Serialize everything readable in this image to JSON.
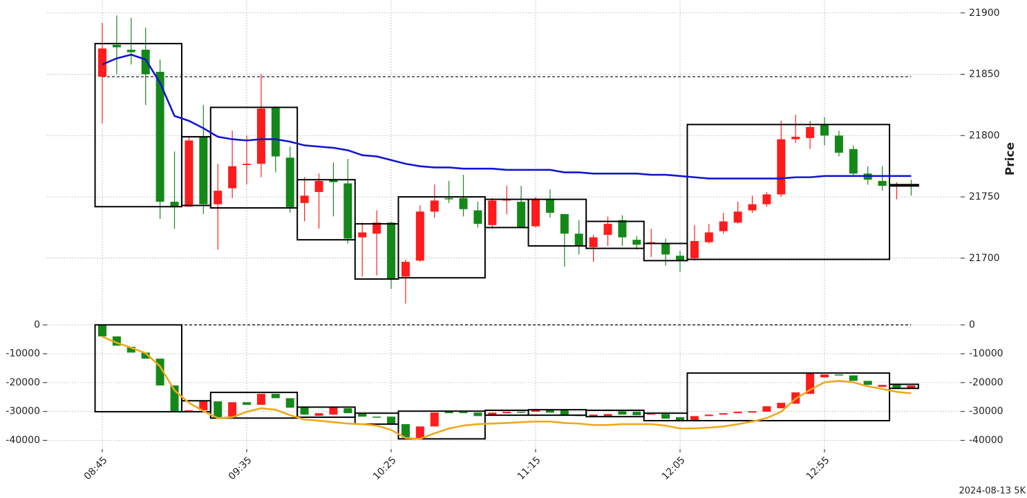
{
  "chart_data": [
    {
      "type": "candlestick",
      "ylabel": "Price",
      "ylim": [
        21652,
        21910
      ],
      "yticks": [
        21700,
        21750,
        21800,
        21850,
        21900
      ],
      "ytick_sides": [
        "right"
      ],
      "grid": true,
      "up_color": "#ff1c1c",
      "down_color": "#15881a",
      "box_color": "#000000",
      "hline": 21848,
      "hline_span": [
        0,
        56
      ],
      "open": [
        21848,
        21874,
        21870,
        21870,
        21852,
        21746,
        21742,
        21799,
        21744,
        21757,
        21776,
        21777,
        21823,
        21782,
        21745,
        21754,
        21764,
        21761,
        21717,
        21720,
        21729,
        21685,
        21698,
        21738,
        21749,
        21749,
        21739,
        21727,
        21747,
        21746,
        21726,
        21748,
        21736,
        21720,
        21709,
        21719,
        21731,
        21715,
        21712,
        21712,
        21702,
        21700,
        21713,
        21722,
        21729,
        21739,
        21744,
        21752,
        21797,
        21798,
        21809,
        21800,
        21789,
        21769,
        21763,
        21759,
        21760
      ],
      "high": [
        21892,
        21898,
        21896,
        21888,
        21862,
        21787,
        21799,
        21825,
        21777,
        21804,
        21800,
        21850,
        21824,
        21791,
        21766,
        21769,
        21778,
        21781,
        21729,
        21739,
        21730,
        21699,
        21743,
        21760,
        21763,
        21768,
        21746,
        21749,
        21759,
        21759,
        21750,
        21756,
        21736,
        21731,
        21719,
        21734,
        21735,
        21718,
        21724,
        21716,
        21706,
        21727,
        21728,
        21737,
        21746,
        21751,
        21754,
        21812,
        21817,
        21812,
        21815,
        21804,
        21792,
        21775,
        21775,
        21762,
        21764
      ],
      "low": [
        21810,
        21850,
        21858,
        21825,
        21732,
        21724,
        21742,
        21736,
        21707,
        21749,
        21760,
        21766,
        21770,
        21737,
        21730,
        21724,
        21734,
        21712,
        21685,
        21686,
        21675,
        21663,
        21697,
        21733,
        21745,
        21734,
        21725,
        21724,
        21736,
        21725,
        21725,
        21733,
        21693,
        21703,
        21697,
        21710,
        21710,
        21707,
        21701,
        21694,
        21689,
        21698,
        21712,
        21720,
        21728,
        21737,
        21742,
        21750,
        21794,
        21789,
        21792,
        21783,
        21767,
        21760,
        21755,
        21748,
        21751
      ],
      "close": [
        21871,
        21872,
        21868,
        21850,
        21746,
        21742,
        21796,
        21744,
        21755,
        21775,
        21777,
        21822,
        21783,
        21741,
        21751,
        21763,
        21762,
        21716,
        21721,
        21729,
        21683,
        21697,
        21738,
        21747,
        21748,
        21740,
        21728,
        21747,
        21748,
        21725,
        21748,
        21737,
        21720,
        21710,
        21717,
        21728,
        21717,
        21711,
        21713,
        21703,
        21698,
        21714,
        21721,
        21730,
        21738,
        21744,
        21752,
        21797,
        21799,
        21807,
        21800,
        21786,
        21769,
        21764,
        21759,
        21760,
        21759
      ],
      "lines": [
        {
          "color": "#1414d2",
          "values": [
            21858,
            21863,
            21866,
            21862,
            21843,
            21816,
            21812,
            21806,
            21799,
            21797,
            21796,
            21797,
            21797,
            21795,
            21792,
            21791,
            21790,
            21788,
            21784,
            21783,
            21780,
            21777,
            21775,
            21774,
            21774,
            21773,
            21773,
            21773,
            21772,
            21772,
            21772,
            21772,
            21770,
            21770,
            21769,
            21769,
            21769,
            21769,
            21768,
            21768,
            21767,
            21766,
            21765,
            21765,
            21765,
            21765,
            21765,
            21765,
            21766,
            21766,
            21767,
            21767,
            21767,
            21767,
            21767,
            21767,
            21767
          ]
        }
      ],
      "boxes": [
        {
          "start": 0,
          "end": 5,
          "high": 21875,
          "low": 21742
        },
        {
          "start": 6,
          "end": 7,
          "high": 21799,
          "low": 21743
        },
        {
          "start": 8,
          "end": 13,
          "high": 21823,
          "low": 21741
        },
        {
          "start": 14,
          "end": 17,
          "high": 21764,
          "low": 21715
        },
        {
          "start": 18,
          "end": 20,
          "high": 21728,
          "low": 21683
        },
        {
          "start": 21,
          "end": 26,
          "high": 21750,
          "low": 21684
        },
        {
          "start": 27,
          "end": 29,
          "high": 21748,
          "low": 21725
        },
        {
          "start": 30,
          "end": 33,
          "high": 21748,
          "low": 21710
        },
        {
          "start": 34,
          "end": 37,
          "high": 21730,
          "low": 21708
        },
        {
          "start": 38,
          "end": 40,
          "high": 21712,
          "low": 21698
        },
        {
          "start": 41,
          "end": 54,
          "high": 21809,
          "low": 21699
        },
        {
          "start": 55,
          "end": 56,
          "high": 21760,
          "low": 21759
        }
      ]
    },
    {
      "type": "candlestick",
      "ylim": [
        -43000,
        2000
      ],
      "yticks": [
        0,
        -10000,
        -20000,
        -30000,
        -40000
      ],
      "ytick_sides": [
        "left",
        "right"
      ],
      "grid": true,
      "up_color": "#ff1c1c",
      "down_color": "#15881a",
      "box_color": "#000000",
      "hline": 0,
      "hline_span": [
        0,
        56
      ],
      "categories": [
        "08:45",
        null,
        null,
        null,
        null,
        null,
        null,
        null,
        null,
        null,
        "09:35",
        null,
        null,
        null,
        null,
        null,
        null,
        null,
        null,
        null,
        "10:25",
        null,
        null,
        null,
        null,
        null,
        null,
        null,
        null,
        null,
        "11:15",
        null,
        null,
        null,
        null,
        null,
        null,
        null,
        null,
        null,
        "12:05",
        null,
        null,
        null,
        null,
        null,
        null,
        null,
        null,
        null,
        "12:55",
        null,
        null,
        null,
        null,
        null,
        null
      ],
      "open": [
        0,
        -4000,
        -7600,
        -9600,
        -11700,
        -21000,
        -30100,
        -29600,
        -26500,
        -32000,
        -26800,
        -27700,
        -23900,
        -25400,
        -28700,
        -31500,
        -31100,
        -28900,
        -30600,
        -31800,
        -31800,
        -34400,
        -39200,
        -35200,
        -30100,
        -30200,
        -30400,
        -31300,
        -30600,
        -30100,
        -30100,
        -29600,
        -29600,
        -31100,
        -31800,
        -31600,
        -29900,
        -30100,
        -31100,
        -30900,
        -32000,
        -33200,
        -31600,
        -31100,
        -30600,
        -30400,
        -30100,
        -28900,
        -27300,
        -23900,
        -18200,
        -17200,
        -17500,
        -19400,
        -21500,
        -20800,
        -21800
      ],
      "close": [
        -4000,
        -7200,
        -9600,
        -11700,
        -21000,
        -30100,
        -29600,
        -26500,
        -32000,
        -26800,
        -27700,
        -23900,
        -25400,
        -28700,
        -31100,
        -30600,
        -28700,
        -30600,
        -31800,
        -32000,
        -34400,
        -39000,
        -35200,
        -30400,
        -30600,
        -30600,
        -31600,
        -30400,
        -30100,
        -30400,
        -29600,
        -30400,
        -31300,
        -31600,
        -31100,
        -30900,
        -31100,
        -31300,
        -30600,
        -32500,
        -33200,
        -31600,
        -31100,
        -30600,
        -30100,
        -29900,
        -28200,
        -27000,
        -23400,
        -16700,
        -17200,
        -17500,
        -19400,
        -20800,
        -20800,
        -21800,
        -21000
      ],
      "lines": [
        {
          "color": "#f0a81a",
          "values": [
            -4100,
            -6200,
            -7900,
            -9800,
            -14400,
            -22700,
            -27000,
            -29900,
            -32300,
            -32000,
            -30100,
            -28900,
            -29400,
            -31300,
            -32800,
            -33200,
            -33700,
            -34200,
            -34400,
            -34900,
            -36400,
            -39200,
            -39500,
            -37600,
            -35900,
            -34900,
            -34400,
            -34200,
            -34000,
            -33700,
            -33500,
            -33500,
            -34000,
            -34200,
            -34700,
            -34700,
            -34400,
            -34400,
            -34400,
            -34900,
            -35900,
            -35900,
            -35600,
            -35200,
            -34400,
            -33500,
            -32300,
            -30100,
            -25600,
            -22500,
            -19900,
            -19400,
            -19900,
            -21300,
            -22200,
            -23200,
            -23700
          ]
        }
      ],
      "boxes": [
        {
          "start": 0,
          "end": 5,
          "high": 0,
          "low": -30100
        },
        {
          "start": 6,
          "end": 7,
          "high": -26300,
          "low": -30100
        },
        {
          "start": 8,
          "end": 13,
          "high": -23400,
          "low": -32300
        },
        {
          "start": 14,
          "end": 17,
          "high": -28500,
          "low": -32000
        },
        {
          "start": 18,
          "end": 20,
          "high": -30600,
          "low": -34400
        },
        {
          "start": 21,
          "end": 26,
          "high": -29900,
          "low": -39500
        },
        {
          "start": 27,
          "end": 29,
          "high": -29600,
          "low": -31300
        },
        {
          "start": 30,
          "end": 33,
          "high": -29400,
          "low": -31300
        },
        {
          "start": 34,
          "end": 37,
          "high": -29600,
          "low": -31800
        },
        {
          "start": 38,
          "end": 40,
          "high": -30600,
          "low": -33200
        },
        {
          "start": 41,
          "end": 54,
          "high": -16700,
          "low": -33200
        },
        {
          "start": 55,
          "end": 56,
          "high": -20600,
          "low": -22000
        }
      ]
    }
  ],
  "caption": "2024-08-13 5K"
}
